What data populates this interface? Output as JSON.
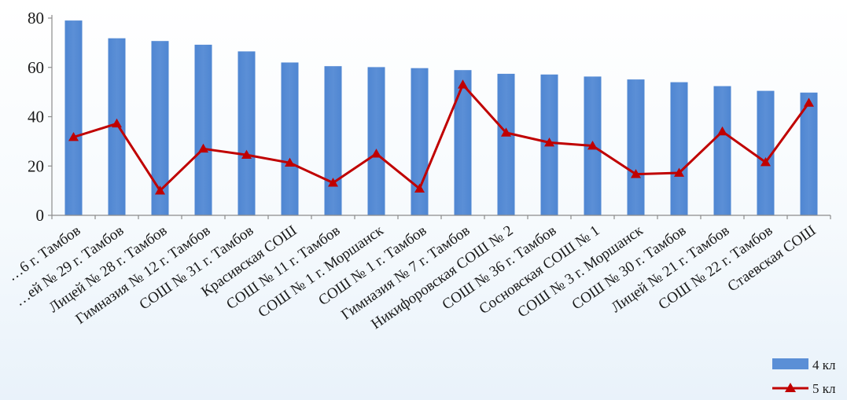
{
  "chart_data": {
    "type": "bar",
    "title": "",
    "xlabel": "",
    "ylabel": "",
    "ylim": [
      0,
      80
    ],
    "yticks": [
      0,
      20,
      40,
      60,
      80
    ],
    "grid": false,
    "legend_position": "bottom-right",
    "categories": [
      "…6 г. Тамбов",
      "…ей № 29 г. Тамбов",
      "Лицей № 28 г. Тамбов",
      "Гимназия № 12 г. Тамбов",
      "СОШ № 31 г. Тамбов",
      "Красивская СОШ",
      "СОШ № 11 г. Тамбов",
      "СОШ № 1 г. Моршанск",
      "СОШ № 1 г. Тамбов",
      "Гимназия № 7 г. Тамбов",
      "Никифоровская СОШ № 2",
      "СОШ № 36 г. Тамбов",
      "Сосновская СОШ № 1",
      "СОШ № 3 г. Моршанск",
      "СОШ № 30 г. Тамбов",
      "Лицей № 21 г. Тамбов",
      "СОШ № 22 г. Тамбов",
      "Стаевская СОШ"
    ],
    "series": [
      {
        "name": "4 кл",
        "kind": "bar",
        "color": "#5b8fd6",
        "values": [
          79,
          71.8,
          70.7,
          69.2,
          66.5,
          62,
          60.5,
          60.1,
          59.7,
          58.9,
          57.4,
          57.1,
          56.3,
          55.1,
          54,
          52.4,
          50.5,
          49.8
        ]
      },
      {
        "name": "5 кл",
        "kind": "line",
        "color": "#c00000",
        "marker": "triangle",
        "values": [
          31.7,
          37.2,
          10,
          27,
          24.5,
          21.3,
          13.2,
          25,
          10.8,
          53,
          33.5,
          29.5,
          28.2,
          16.7,
          17.2,
          34,
          21.5,
          45.6
        ]
      }
    ]
  }
}
